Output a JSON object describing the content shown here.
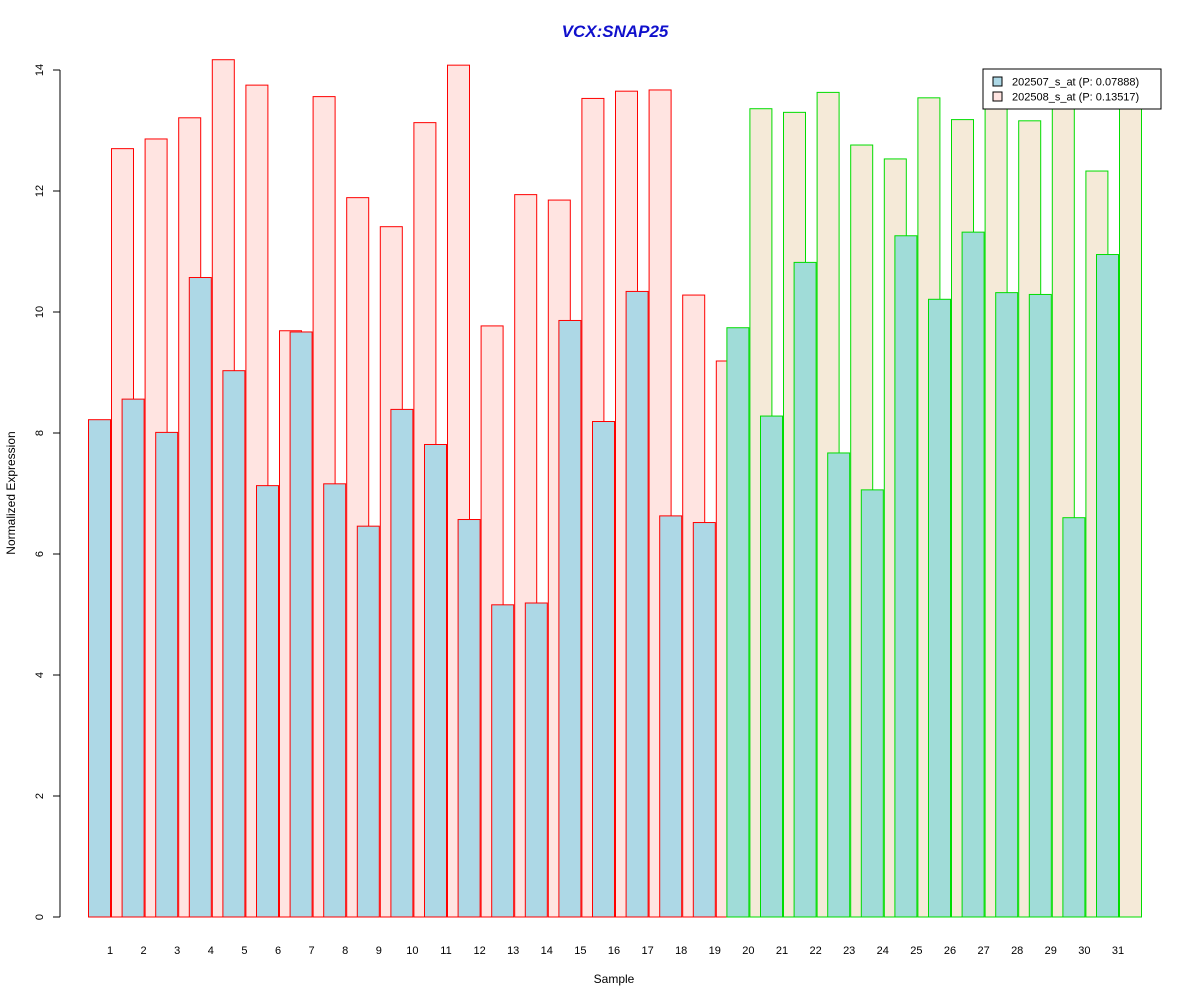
{
  "chart_data": {
    "type": "bar",
    "title": "VCX:SNAP25",
    "xlabel": "Sample",
    "ylabel": "Normalized Expression",
    "ylim": [
      0,
      14
    ],
    "yticks": [
      0,
      2,
      4,
      6,
      8,
      10,
      12,
      14
    ],
    "grid": false,
    "legend_position": "top-right",
    "categories": [
      "1",
      "2",
      "3",
      "4",
      "5",
      "6",
      "7",
      "8",
      "9",
      "10",
      "11",
      "12",
      "13",
      "14",
      "15",
      "16",
      "17",
      "18",
      "19",
      "20",
      "21",
      "22",
      "23",
      "24",
      "25",
      "26",
      "27",
      "28",
      "29",
      "30",
      "31"
    ],
    "group_a_count": 19,
    "colors": {
      "group_a_border": "#ff0000",
      "group_b_border": "#00dd00",
      "series1_fill_a": "#add8e6",
      "series1_fill_b": "#a0dcd8",
      "series2_fill_a": "#ffe4e1",
      "series2_fill_b": "#f5ead8",
      "title": "#1010cc"
    },
    "series": [
      {
        "name": "202507_s_at (P: 0.07888)",
        "values": [
          8.22,
          8.56,
          8.01,
          10.57,
          9.03,
          7.13,
          9.67,
          7.16,
          6.46,
          8.39,
          7.81,
          6.57,
          5.16,
          5.19,
          9.86,
          8.19,
          10.34,
          6.63,
          6.52,
          9.74,
          8.28,
          10.82,
          7.67,
          7.06,
          11.26,
          10.21,
          11.32,
          10.32,
          10.29,
          6.6,
          10.95
        ]
      },
      {
        "name": "202508_s_at (P: 0.13517)",
        "values": [
          12.7,
          12.86,
          13.21,
          14.17,
          13.75,
          9.69,
          13.56,
          11.89,
          11.41,
          13.13,
          14.08,
          9.77,
          11.94,
          11.85,
          13.53,
          13.65,
          13.67,
          10.28,
          9.19,
          13.36,
          13.3,
          13.63,
          12.76,
          12.53,
          13.54,
          13.18,
          13.45,
          13.16,
          13.45,
          12.33,
          13.45
        ]
      }
    ]
  }
}
